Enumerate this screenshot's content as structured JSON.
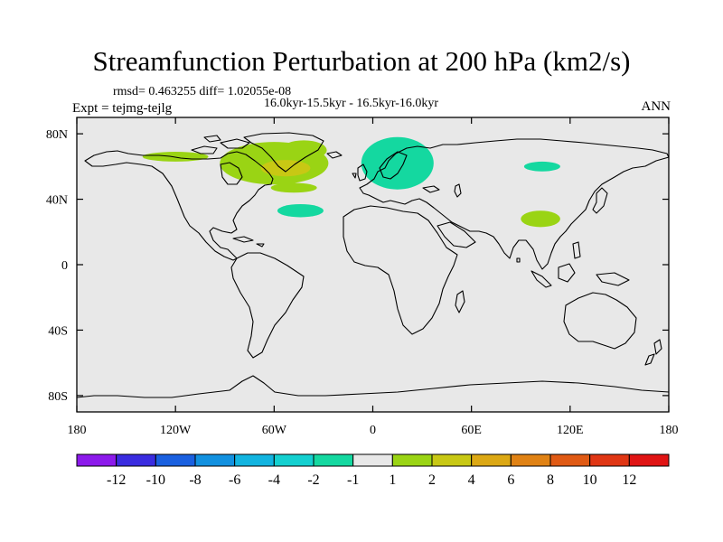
{
  "chart_data": {
    "type": "map",
    "title": "Streamfunction Perturbation at 200 hPa (km2/s)",
    "stats_line": "rmsd= 0.463255 diff= 1.02055e-08",
    "period_label": "16.0kyr-15.5kyr - 16.5kyr-16.0kyr",
    "experiment_label": "Expt = tejmg-tejlg",
    "season_label": "ANN",
    "projection": "cylindrical equidistant",
    "lon_range": [
      -180,
      180
    ],
    "lat_range": [
      -90,
      90
    ],
    "x_ticks": [
      {
        "lon": -180,
        "label": "180"
      },
      {
        "lon": -120,
        "label": "120W"
      },
      {
        "lon": -60,
        "label": "60W"
      },
      {
        "lon": 0,
        "label": "0"
      },
      {
        "lon": 60,
        "label": "60E"
      },
      {
        "lon": 120,
        "label": "120E"
      },
      {
        "lon": 180,
        "label": "180"
      }
    ],
    "y_ticks": [
      {
        "lat": 80,
        "label": "80N"
      },
      {
        "lat": 40,
        "label": "40N"
      },
      {
        "lat": 0,
        "label": "0"
      },
      {
        "lat": -40,
        "label": "40S"
      },
      {
        "lat": -80,
        "label": "80S"
      }
    ],
    "colorbar": {
      "labels": [
        "-12",
        "-10",
        "-8",
        "-6",
        "-4",
        "-2",
        "-1",
        "1",
        "2",
        "4",
        "6",
        "8",
        "10",
        "12"
      ],
      "colors": [
        "#8c1aeb",
        "#3a2ce0",
        "#1a60e0",
        "#1291e0",
        "#12b4e0",
        "#14d0d0",
        "#14d8a0",
        "#e8e8e8",
        "#9ad414",
        "#c8c814",
        "#dca814",
        "#e08214",
        "#e05a14",
        "#e03614",
        "#e01414"
      ]
    },
    "anomalies": [
      {
        "region": "Alaska",
        "lon": -120,
        "lat": 66,
        "rx": 20,
        "ry": 3,
        "value_range": "1 to 2",
        "color": "#9ad414"
      },
      {
        "region": "Canada / Hudson Bay",
        "lon": -60,
        "lat": 62,
        "rx": 33,
        "ry": 13,
        "value_range": "1 to 2",
        "color": "#9ad414"
      },
      {
        "region": "Labrador core",
        "lon": -53,
        "lat": 59,
        "rx": 15,
        "ry": 5,
        "value_range": "2 to 4",
        "color": "#c8c814"
      },
      {
        "region": "Greenland",
        "lon": -42,
        "lat": 70,
        "rx": 14,
        "ry": 6,
        "value_range": "1 to 2",
        "color": "#9ad414"
      },
      {
        "region": "North Atlantic",
        "lon": -48,
        "lat": 47,
        "rx": 14,
        "ry": 3,
        "value_range": "1 to 2",
        "color": "#9ad414"
      },
      {
        "region": "Western North Atlantic",
        "lon": -44,
        "lat": 33,
        "rx": 14,
        "ry": 4,
        "value_range": "-2 to -1",
        "color": "#14d8a0"
      },
      {
        "region": "Scandinavia / Europe",
        "lon": 15,
        "lat": 62,
        "rx": 22,
        "ry": 16,
        "value_range": "-2 to -1",
        "color": "#14d8a0"
      },
      {
        "region": "Siberia",
        "lon": 103,
        "lat": 60,
        "rx": 11,
        "ry": 3,
        "value_range": "-2 to -1",
        "color": "#14d8a0"
      },
      {
        "region": "China",
        "lon": 102,
        "lat": 28,
        "rx": 12,
        "ry": 5,
        "value_range": "1 to 2",
        "color": "#9ad414"
      }
    ]
  }
}
